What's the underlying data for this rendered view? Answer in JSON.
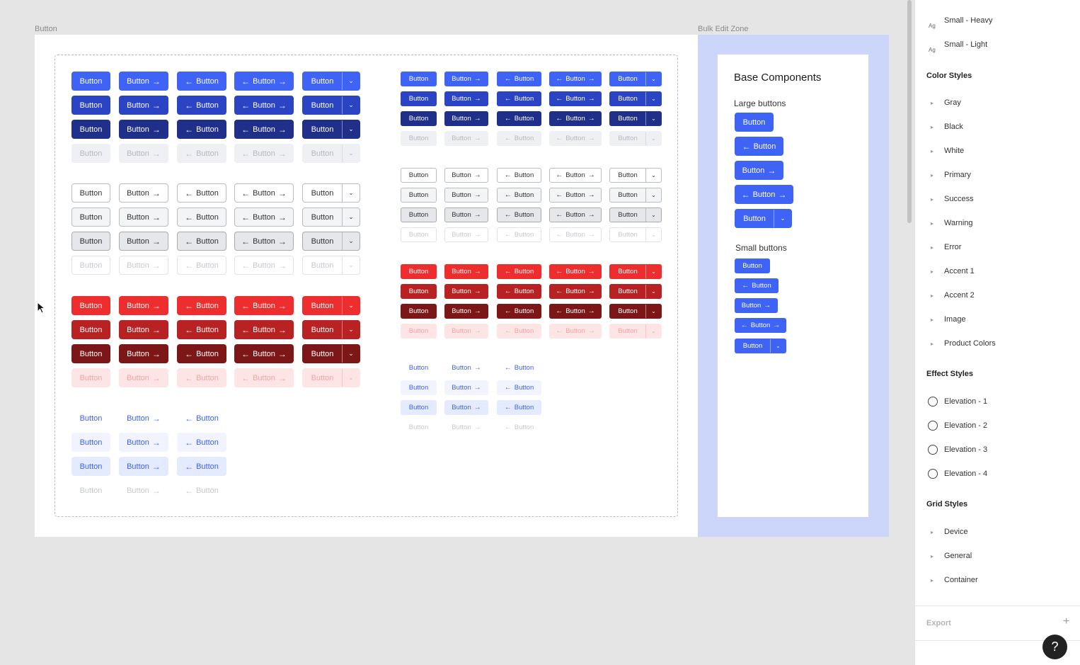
{
  "canvas": {
    "frame_label": "Button",
    "bulk_label": "Bulk Edit Zone",
    "button_text": "Button",
    "arrow_right": "→",
    "arrow_left": "←",
    "caret": "⌄"
  },
  "base": {
    "title": "Base Components",
    "large_label": "Large buttons",
    "small_label": "Small buttons"
  },
  "panel": {
    "text_styles": [
      "Small - Heavy",
      "Small - Light"
    ],
    "text_icon": "Ag",
    "color_header": "Color Styles",
    "colors": [
      "Gray",
      "Black",
      "White",
      "Primary",
      "Success",
      "Warning",
      "Error",
      "Accent 1",
      "Accent 2",
      "Image",
      "Product Colors"
    ],
    "effect_header": "Effect Styles",
    "effects": [
      "Elevation - 1",
      "Elevation - 2",
      "Elevation - 3",
      "Elevation - 4"
    ],
    "grid_header": "Grid Styles",
    "grids": [
      "Device",
      "General",
      "Container"
    ],
    "export": "Export",
    "plus": "+",
    "help": "?"
  }
}
